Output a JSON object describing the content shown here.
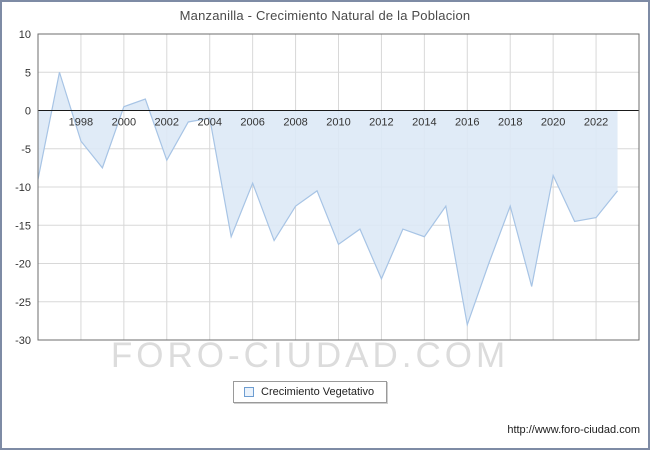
{
  "title": "Manzanilla - Crecimiento Natural de la Poblacion",
  "watermark": "FORO-CIUDAD.COM",
  "footer_url": "http://www.foro-ciudad.com",
  "legend": {
    "label": "Crecimiento Vegetativo"
  },
  "colors": {
    "frame": "#7e8ba5",
    "plot_border": "#6e6e6e",
    "grid": "#d8d8d8",
    "zero_axis": "#1a1a1a",
    "area_fill": "#dde9f6",
    "line": "#a7c4e5",
    "tick_label": "#333333",
    "legend_marker": "#6d9dd1",
    "watermark": "#dcdcdc",
    "title": "#4a4a4a"
  },
  "chart_data": {
    "type": "area",
    "title": "Manzanilla - Crecimiento Natural de la Poblacion",
    "xlabel": "",
    "ylabel": "",
    "x": [
      1996,
      1997,
      1998,
      1999,
      2000,
      2001,
      2002,
      2003,
      2004,
      2005,
      2006,
      2007,
      2008,
      2009,
      2010,
      2011,
      2012,
      2013,
      2014,
      2015,
      2016,
      2017,
      2018,
      2019,
      2020,
      2021,
      2022,
      2023
    ],
    "series": [
      {
        "name": "Crecimiento Vegetativo",
        "values": [
          -9,
          5,
          -4,
          -7.5,
          0.5,
          1.5,
          -6.5,
          -1.5,
          -1,
          -16.5,
          -9.5,
          -17,
          -12.5,
          -10.5,
          -17.5,
          -15.5,
          -22,
          -15.5,
          -16.5,
          -12.5,
          -28,
          -20,
          -12.5,
          -23,
          -8.5,
          -14.5,
          -14,
          -10.5
        ]
      }
    ],
    "xlim": [
      1996,
      2024
    ],
    "ylim": [
      -30,
      10
    ],
    "xticks": [
      1998,
      2000,
      2002,
      2004,
      2006,
      2008,
      2010,
      2012,
      2014,
      2016,
      2018,
      2020,
      2022
    ],
    "yticks": [
      10,
      5,
      0,
      -5,
      -10,
      -15,
      -20,
      -25,
      -30
    ],
    "grid": true,
    "fill_to": 0,
    "legend_position": "bottom"
  }
}
